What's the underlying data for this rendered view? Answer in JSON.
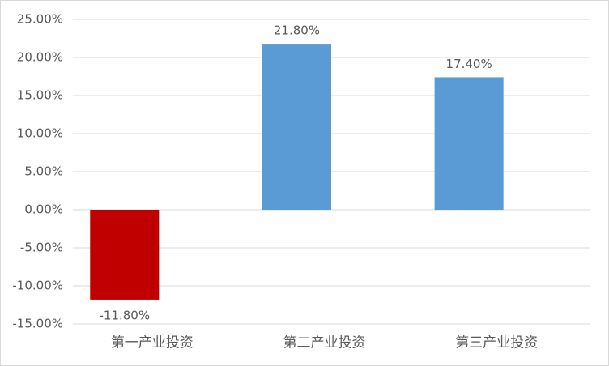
{
  "chart_data": {
    "type": "bar",
    "categories": [
      "第一产业投资",
      "第二产业投资",
      "第三产业投资"
    ],
    "values": [
      -11.8,
      21.8,
      17.4
    ],
    "value_labels": [
      "-11.80%",
      "21.80%",
      "17.40%"
    ],
    "colors": [
      "#c00000",
      "#5b9bd5",
      "#5b9bd5"
    ],
    "ylim": [
      -15,
      25
    ],
    "yticks": [
      {
        "value": -15,
        "label": "-15.00%"
      },
      {
        "value": -10,
        "label": "-10.00%"
      },
      {
        "value": -5,
        "label": "-5.00%"
      },
      {
        "value": 0,
        "label": "0.00%"
      },
      {
        "value": 5,
        "label": "5.00%"
      },
      {
        "value": 10,
        "label": "10.00%"
      },
      {
        "value": 15,
        "label": "15.00%"
      },
      {
        "value": 20,
        "label": "20.00%"
      },
      {
        "value": 25,
        "label": "25.00%"
      }
    ],
    "grid": true
  }
}
